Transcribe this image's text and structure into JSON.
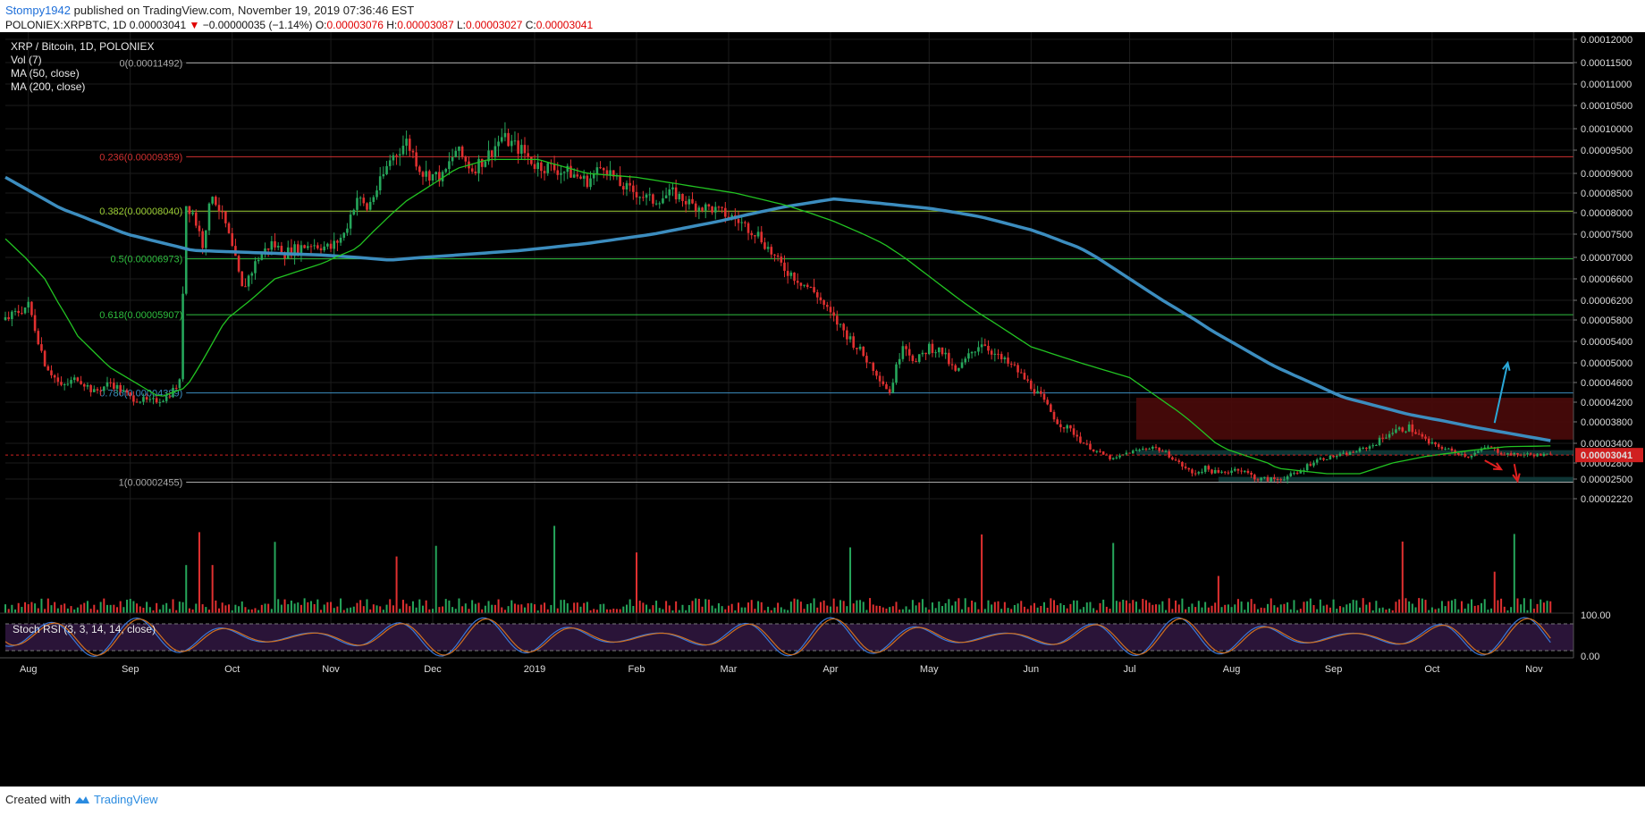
{
  "header": {
    "user": "Stompy1942",
    "published": "published on TradingView.com, November 19, 2019 07:36:46 EST",
    "symbol": "POLONIEX:XRPBTC, 1D",
    "last": "0.00003041",
    "change": "−0.00000035 (−1.14%)",
    "o_label": "O:",
    "o_value": "0.00003076",
    "h_label": "H:",
    "h_value": "0.00003087",
    "l_label": "L:",
    "l_value": "0.00003027",
    "c_label": "C:",
    "c_value": "0.00003041"
  },
  "footer": {
    "created_with": "Created with",
    "brand": "TradingView"
  },
  "colors": {
    "background": "#000000",
    "candle_up": "#26a65b",
    "candle_down": "#e03030",
    "ma50": "#22c322",
    "ma200": "#3c8dbf",
    "price_line": "#d02020",
    "resistance_zone": "#4a0a0a",
    "support_zone": "#0f3a3a",
    "stoch_panel": "#2a1438",
    "stoch_k": "#3a78d8",
    "stoch_d": "#d07020",
    "arrow_up": "#2aa8d8",
    "arrow_down": "#e02020"
  },
  "chart_data": {
    "type": "candlestick",
    "title": "XRP / Bitcoin, 1D, POLONIEX",
    "indicators": [
      "Vol (7)",
      "MA (50, close)",
      "MA (200, close)"
    ],
    "price_axis_ticks": [
      "0.00012000",
      "0.00011500",
      "0.00011000",
      "0.00010500",
      "0.00010000",
      "0.00009500",
      "0.00009000",
      "0.00008500",
      "0.00008000",
      "0.00007500",
      "0.00007000",
      "0.00006600",
      "0.00006200",
      "0.00005800",
      "0.00005400",
      "0.00005000",
      "0.00004600",
      "0.00004200",
      "0.00003800",
      "0.00003400",
      "0.00002800",
      "0.00002500",
      "0.00002220"
    ],
    "price_axis_values": [
      0.00012,
      0.000115,
      0.00011,
      0.000105,
      0.0001,
      9.5e-05,
      9e-05,
      8.5e-05,
      8e-05,
      7.5e-05,
      7e-05,
      6.6e-05,
      6.2e-05,
      5.8e-05,
      5.4e-05,
      5e-05,
      4.6e-05,
      4.2e-05,
      3.8e-05,
      3.4e-05,
      2.8e-05,
      2.5e-05,
      2.22e-05
    ],
    "last_price": "0.00003041",
    "last_price_value": 3.041e-05,
    "x_axis_labels": [
      "Aug",
      "Sep",
      "Oct",
      "Nov",
      "Dec",
      "2019",
      "Feb",
      "Mar",
      "Apr",
      "May",
      "Jun",
      "Jul",
      "Aug",
      "Sep",
      "Oct",
      "Nov"
    ],
    "x_axis_days": [
      0,
      31,
      62,
      92,
      123,
      154,
      185,
      213,
      244,
      274,
      305,
      335,
      366,
      397,
      427,
      458
    ],
    "fib_levels": [
      {
        "label": "0(0.00011492)",
        "value": 0.00011492,
        "color": "#aaaaaa"
      },
      {
        "label": "0.236(0.00009359)",
        "value": 9.359e-05,
        "color": "#d03030"
      },
      {
        "label": "0.382(0.00008040)",
        "value": 8.04e-05,
        "color": "#9acd32"
      },
      {
        "label": "0.5(0.00006973)",
        "value": 6.973e-05,
        "color": "#2fbf3f"
      },
      {
        "label": "0.618(0.00005907)",
        "value": 5.907e-05,
        "color": "#2fbf3f"
      },
      {
        "label": "0.786(0.00004389)",
        "value": 4.389e-05,
        "color": "#3c8dbf"
      },
      {
        "label": "1(0.00002455)",
        "value": 2.455e-05,
        "color": "#aaaaaa"
      }
    ],
    "zones": [
      {
        "name": "resistance",
        "from": 3.47e-05,
        "to": 4.29e-05,
        "start_day": 337,
        "color": "#4a0a0a"
      },
      {
        "name": "support",
        "from": 3.04e-05,
        "to": 3.19e-05,
        "start_day": 337,
        "color": "#0f3a3a"
      },
      {
        "name": "support-low",
        "from": 2.46e-05,
        "to": 2.54e-05,
        "start_day": 362,
        "color": "#0f3a3a"
      }
    ],
    "price_series": {
      "day": [
        -7,
        0,
        5,
        10,
        15,
        20,
        25,
        31,
        37,
        42,
        46,
        48,
        50,
        53,
        56,
        60,
        65,
        70,
        74,
        78,
        82,
        86,
        92,
        96,
        100,
        103,
        106,
        110,
        115,
        120,
        126,
        130,
        135,
        140,
        144,
        150,
        154,
        160,
        165,
        170,
        175,
        180,
        185,
        190,
        196,
        202,
        208,
        214,
        218,
        222,
        228,
        234,
        240,
        244,
        248,
        252,
        257,
        262,
        266,
        270,
        274,
        278,
        282,
        287,
        290,
        295,
        300,
        304,
        308,
        313,
        318,
        324,
        330,
        334,
        338,
        342,
        346,
        350,
        354,
        358,
        362,
        368,
        374,
        380,
        386,
        392,
        397,
        402,
        408,
        414,
        420,
        426,
        432,
        438,
        444,
        448,
        452,
        456,
        460,
        463
      ],
      "close": [
        5.8,
        6.1,
        5.0,
        4.5,
        4.7,
        4.4,
        4.6,
        4.3,
        4.2,
        4.3,
        4.6,
        8.2,
        8.0,
        7.3,
        8.5,
        7.7,
        6.4,
        7.0,
        7.3,
        7.1,
        7.2,
        7.3,
        7.2,
        7.5,
        8.4,
        8.1,
        8.6,
        9.3,
        9.7,
        9.0,
        8.9,
        9.5,
        9.1,
        9.4,
        9.8,
        9.5,
        9.2,
        9.1,
        9.0,
        8.8,
        9.2,
        8.7,
        8.5,
        8.3,
        8.5,
        8.2,
        8.1,
        7.9,
        7.7,
        7.5,
        6.9,
        6.6,
        6.3,
        5.9,
        5.6,
        5.3,
        4.9,
        4.4,
        5.4,
        5.0,
        5.3,
        5.2,
        4.8,
        5.2,
        5.4,
        5.1,
        4.9,
        4.6,
        4.3,
        3.8,
        3.6,
        3.2,
        2.9,
        3.1,
        3.2,
        3.3,
        3.1,
        2.8,
        2.6,
        2.7,
        2.6,
        2.7,
        2.5,
        2.5,
        2.6,
        2.9,
        3.0,
        3.1,
        3.3,
        3.6,
        3.7,
        3.4,
        3.2,
        3.0,
        3.3,
        3.1,
        3.05,
        3.06,
        3.041,
        3.05
      ],
      "scale": "1e-5 BTC"
    },
    "ma50": {
      "day": [
        -7,
        5,
        15,
        25,
        40,
        48,
        60,
        75,
        90,
        100,
        115,
        130,
        140,
        155,
        170,
        185,
        200,
        215,
        230,
        245,
        260,
        275,
        290,
        305,
        320,
        335,
        350,
        365,
        380,
        395,
        405,
        415,
        425,
        440,
        450,
        463
      ],
      "value": [
        7.4,
        6.6,
        5.5,
        4.9,
        4.3,
        4.5,
        5.8,
        6.6,
        6.9,
        7.2,
        8.3,
        9.1,
        9.3,
        9.3,
        9.0,
        8.9,
        8.7,
        8.5,
        8.2,
        7.8,
        7.3,
        6.6,
        5.9,
        5.3,
        5.0,
        4.7,
        4.0,
        3.2,
        2.7,
        2.6,
        2.6,
        2.8,
        3.0,
        3.2,
        3.3,
        3.32
      ],
      "scale": "1e-5 BTC"
    },
    "ma200": {
      "day": [
        -7,
        10,
        30,
        50,
        70,
        90,
        110,
        130,
        150,
        170,
        190,
        210,
        230,
        245,
        258,
        275,
        290,
        305,
        320,
        340,
        360,
        380,
        400,
        420,
        440,
        463
      ],
      "value": [
        8.9,
        8.1,
        7.5,
        7.15,
        7.1,
        7.05,
        6.95,
        7.05,
        7.15,
        7.3,
        7.5,
        7.8,
        8.15,
        8.35,
        8.25,
        8.1,
        7.9,
        7.6,
        7.2,
        6.4,
        5.6,
        4.9,
        4.3,
        3.95,
        3.7,
        3.45
      ],
      "scale": "1e-5 BTC"
    },
    "volume_peaks_day": [
      48,
      52,
      56,
      75,
      112,
      124,
      160,
      185,
      250,
      290,
      330,
      362,
      418,
      446,
      452
    ],
    "stoch_rsi": {
      "label": "Stoch RSI (3, 3, 14, 14, close)",
      "axis_ticks": [
        "100.00",
        "0.00"
      ],
      "levels": [
        80,
        20
      ]
    },
    "arrows": [
      {
        "dir": "up",
        "from_day": 446,
        "from_value": 3.78,
        "to_day": 450,
        "to_value": 5.0
      },
      {
        "dir": "down",
        "from_day": 443,
        "from_value": 2.88,
        "to_day": 448,
        "to_value": 2.68
      },
      {
        "dir": "down",
        "from_day": 452,
        "from_value": 2.78,
        "to_day": 453,
        "to_value": 2.47
      }
    ]
  }
}
